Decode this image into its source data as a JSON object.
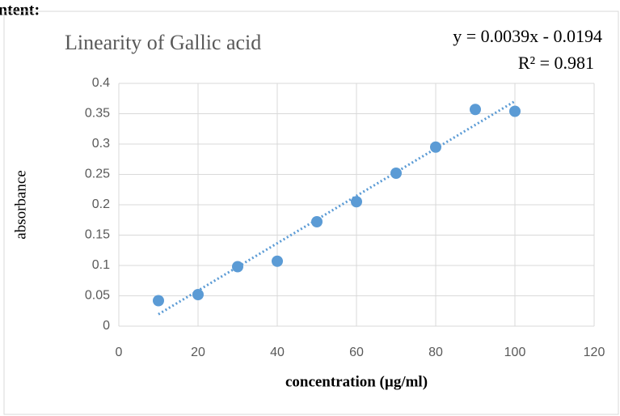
{
  "page_text": "ntent:",
  "chart_data": {
    "type": "scatter",
    "title": "Linearity of Gallic acid",
    "x_label": "concentration (µg/ml)",
    "y_label": "absorbance",
    "x": [
      10,
      20,
      30,
      40,
      50,
      60,
      70,
      80,
      90,
      100
    ],
    "series": [
      {
        "name": "absorbance",
        "color": "#5b9bd5",
        "values": [
          0.042,
          0.052,
          0.098,
          0.107,
          0.172,
          0.205,
          0.252,
          0.295,
          0.357,
          0.354
        ]
      }
    ],
    "trendline": {
      "label": "y = 0.0039x - 0.0194",
      "r2_label": "R² = 0.981",
      "slope": 0.0039,
      "intercept": -0.0194,
      "color": "#5b9bd5"
    },
    "xlim": [
      0,
      120
    ],
    "xticks": [
      0,
      20,
      40,
      60,
      80,
      100,
      120
    ],
    "ylim": [
      0,
      0.4
    ],
    "yticks": [
      0,
      0.05,
      0.1,
      0.15,
      0.2,
      0.25,
      0.3,
      0.35,
      0.4
    ],
    "grid": true
  }
}
